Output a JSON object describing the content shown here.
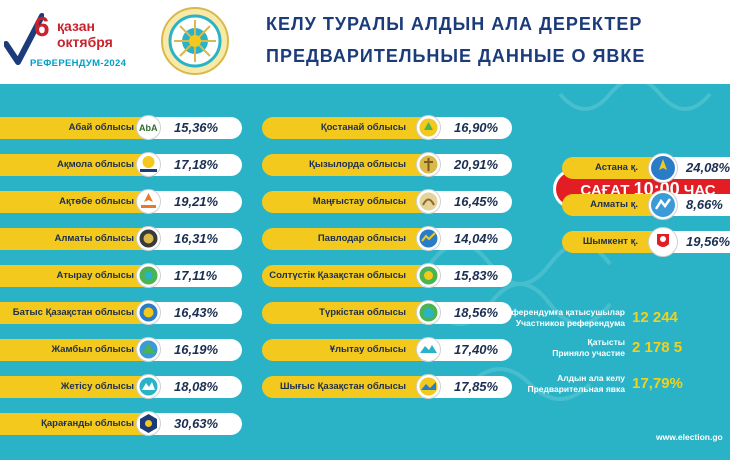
{
  "header": {
    "logo": {
      "day": "6",
      "line1": "қазан",
      "line2": "октября",
      "line3": "РЕФЕРЕНДУМ-2024"
    },
    "title_line1": "КЕЛУ ТУРАЛЫ АЛДЫН АЛА ДЕРЕКТЕР",
    "title_line2": "ПРЕДВАРИТЕЛЬНЫЕ ДАННЫЕ О ЯВКЕ"
  },
  "time_badge": {
    "prefix": "САҒАТ",
    "time": "10:00",
    "suffix": "ЧАС"
  },
  "regions_left": [
    {
      "label": "Абай облысы",
      "value": "15,36%",
      "icon": "abai-region-icon"
    },
    {
      "label": "Ақмола облысы",
      "value": "17,18%",
      "icon": "akmola-region-icon"
    },
    {
      "label": "Ақтөбе облысы",
      "value": "19,21%",
      "icon": "aktobe-region-icon"
    },
    {
      "label": "Алматы облысы",
      "value": "16,31%",
      "icon": "almaty-region-icon"
    },
    {
      "label": "Атырау облысы",
      "value": "17,11%",
      "icon": "atyrau-region-icon"
    },
    {
      "label": "Батыс Қазақстан облысы",
      "value": "16,43%",
      "icon": "west-kazakhstan-region-icon"
    },
    {
      "label": "Жамбыл облысы",
      "value": "16,19%",
      "icon": "zhambyl-region-icon"
    },
    {
      "label": "Жетісу облысы",
      "value": "18,08%",
      "icon": "zhetisu-region-icon"
    },
    {
      "label": "Қарағанды облысы",
      "value": "30,63%",
      "icon": "karaganda-region-icon"
    }
  ],
  "regions_middle": [
    {
      "label": "Қостанай облысы",
      "value": "16,90%",
      "icon": "kostanay-region-icon"
    },
    {
      "label": "Қызылорда облысы",
      "value": "20,91%",
      "icon": "kyzylorda-region-icon"
    },
    {
      "label": "Маңғыстау облысы",
      "value": "16,45%",
      "icon": "mangystau-region-icon"
    },
    {
      "label": "Павлодар облысы",
      "value": "14,04%",
      "icon": "pavlodar-region-icon"
    },
    {
      "label": "Солтүстік Қазақстан облысы",
      "value": "15,83%",
      "icon": "north-kazakhstan-region-icon"
    },
    {
      "label": "Түркістан облысы",
      "value": "18,56%",
      "icon": "turkistan-region-icon"
    },
    {
      "label": "Ұлытау облысы",
      "value": "17,40%",
      "icon": "ulytau-region-icon"
    },
    {
      "label": "Шығыс Қазақстан облысы",
      "value": "17,85%",
      "icon": "east-kazakhstan-region-icon"
    }
  ],
  "cities": [
    {
      "label": "Астана қ.",
      "value": "24,08%",
      "icon": "astana-city-icon"
    },
    {
      "label": "Алматы қ.",
      "value": "8,66%",
      "icon": "almaty-city-icon"
    },
    {
      "label": "Шымкент қ.",
      "value": "19,56%",
      "icon": "shymkent-city-icon"
    }
  ],
  "stats": {
    "participants_kz": "Референдумға қатысушылар",
    "participants_ru": "Участников референдума",
    "participants_value": "12 244",
    "voted_kz": "Қатысты",
    "voted_ru": "Приняло участие",
    "voted_value": "2 178 5",
    "turnout_kz": "Алдын ала келу",
    "turnout_ru": "Предварительная явка",
    "turnout_value": "17,79%"
  },
  "website": "www.election.go",
  "colors": {
    "panel": "#2ab3c6",
    "pill_yellow": "#f2c91c",
    "badge_red": "#e21d24",
    "title_blue": "#1b3b7a",
    "stat_yellow": "#f2d11c"
  }
}
